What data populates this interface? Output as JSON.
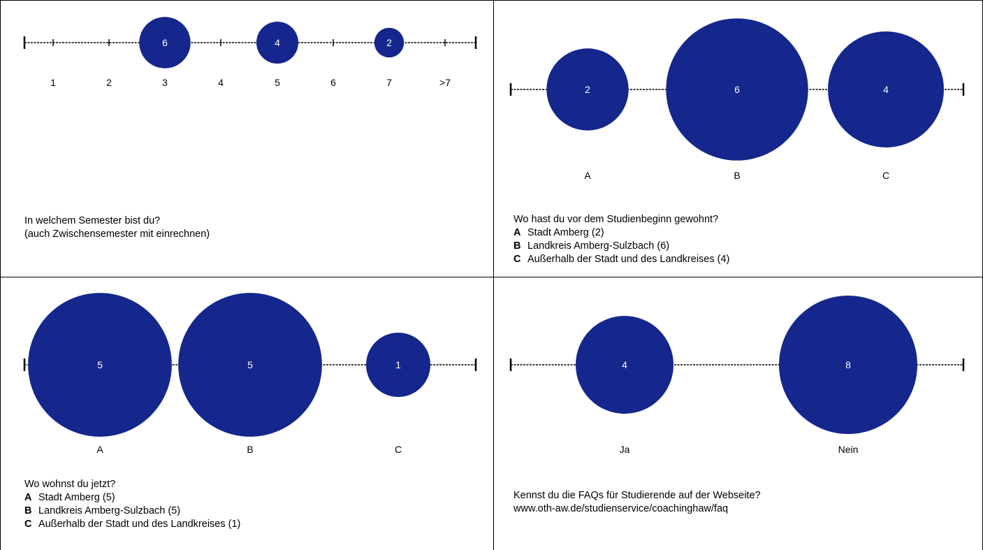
{
  "colors": {
    "bubble": "#15268C",
    "line": "#000000",
    "label": "#000000",
    "bubble_text": "#ffffff"
  },
  "chart_data": [
    {
      "type": "scatter",
      "question": [
        "In welchem Semester bist du?",
        "(auch Zwischensemester mit einrechnen)"
      ],
      "categories": [
        "1",
        "2",
        "3",
        "4",
        "5",
        "6",
        "7",
        ">7"
      ],
      "values": [
        0,
        0,
        6,
        0,
        4,
        0,
        2,
        0
      ],
      "legend": []
    },
    {
      "type": "scatter",
      "question": [
        "Wo hast du vor dem Studienbeginn gewohnt?"
      ],
      "categories": [
        "A",
        "B",
        "C"
      ],
      "values": [
        2,
        6,
        4
      ],
      "legend": [
        {
          "key": "A",
          "text": "Stadt Amberg (2)"
        },
        {
          "key": "B",
          "text": "Landkreis Amberg-Sulzbach (6)"
        },
        {
          "key": "C",
          "text": "Außerhalb der Stadt und des Landkreises (4)"
        }
      ]
    },
    {
      "type": "scatter",
      "question": [
        "Wo wohnst du jetzt?"
      ],
      "categories": [
        "A",
        "B",
        "C"
      ],
      "values": [
        5,
        5,
        1
      ],
      "legend": [
        {
          "key": "A",
          "text": "Stadt Amberg (5)"
        },
        {
          "key": "B",
          "text": "Landkreis Amberg-Sulzbach (5)"
        },
        {
          "key": "C",
          "text": "Außerhalb der Stadt und des Landkreises (1)"
        }
      ]
    },
    {
      "type": "scatter",
      "question": [
        "Kennst du die FAQs für Studierende auf der Webseite?",
        "www.oth-aw.de/studienservice/coachinghaw/faq"
      ],
      "categories": [
        "Ja",
        "Nein"
      ],
      "values": [
        4,
        8
      ],
      "legend": []
    }
  ]
}
